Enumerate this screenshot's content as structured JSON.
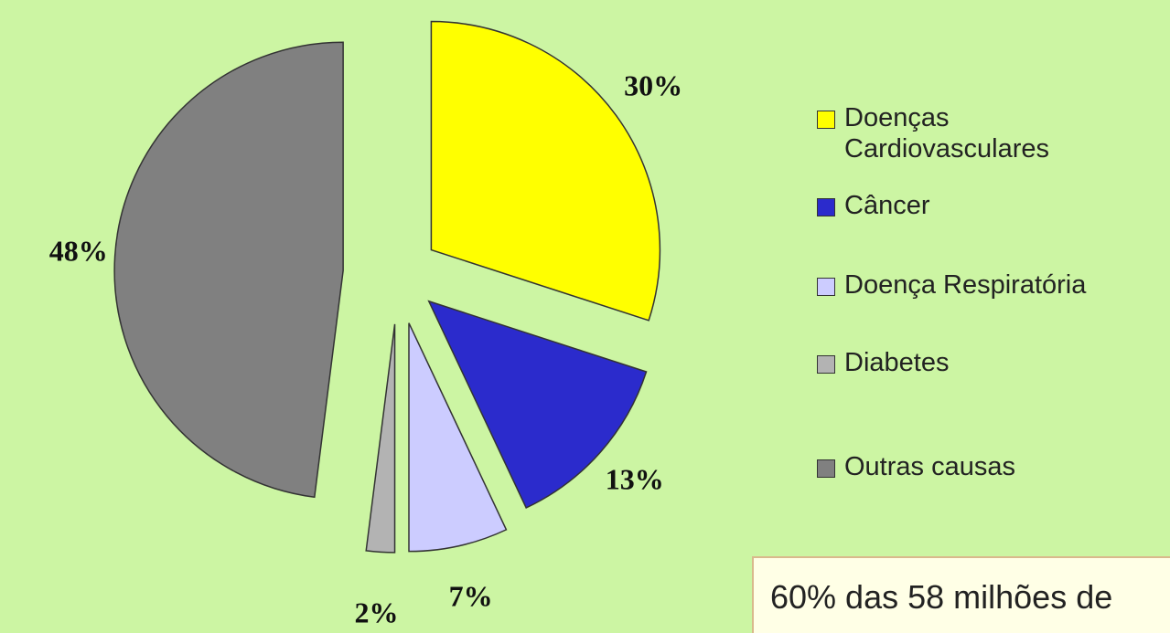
{
  "chart_data": {
    "type": "pie",
    "categories": [
      "Doenças Cardiovasculares",
      "Câncer",
      "Doença Respiratória",
      "Diabetes",
      "Outras causas"
    ],
    "values": [
      30,
      13,
      7,
      2,
      48
    ],
    "value_labels": [
      "30%",
      "13%",
      "7%",
      "2%",
      "48%"
    ],
    "colors": [
      "#ffff00",
      "#2b2bcc",
      "#ccccff",
      "#b3b3b3",
      "#808080"
    ],
    "legend": "right",
    "annotation": "60% das 58 milhões de"
  }
}
